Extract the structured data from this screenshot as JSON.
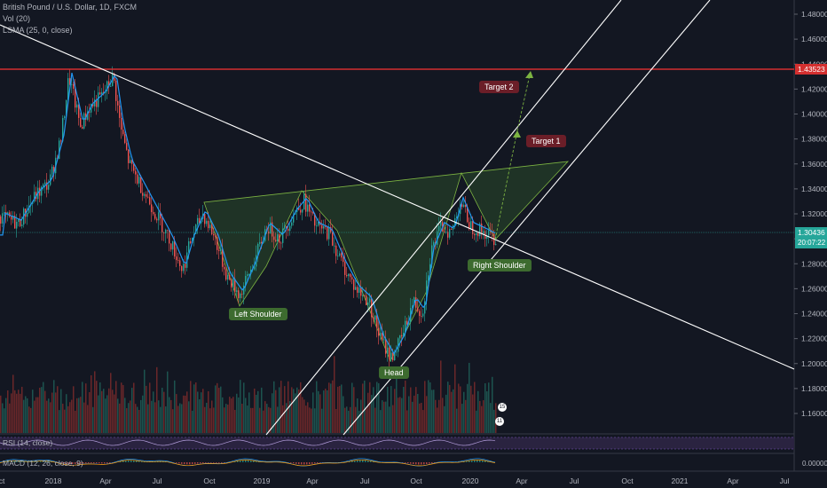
{
  "header": {
    "symbol": "British Pound / U.S. Dollar, 1D, FXCM",
    "vol_indicator": "Vol (20)",
    "lsma_indicator": "LSMA (25, 0, close)"
  },
  "price_axis": {
    "ticks": [
      "1.48000",
      "1.46000",
      "1.44000",
      "1.42000",
      "1.40000",
      "1.38000",
      "1.36000",
      "1.34000",
      "1.32000",
      "1.30000",
      "1.28000",
      "1.26000",
      "1.24000",
      "1.22000",
      "1.20000",
      "1.18000",
      "1.16000"
    ],
    "red_line_price": "1.43523",
    "current_price": "1.30436",
    "countdown": "20:07:22"
  },
  "time_axis": {
    "labels": [
      "ct",
      "2018",
      "Apr",
      "Jul",
      "Oct",
      "2019",
      "Apr",
      "Jul",
      "Oct",
      "2020",
      "Apr",
      "Jul",
      "Oct",
      "2021",
      "Apr",
      "Jul"
    ]
  },
  "annotations": {
    "left_shoulder": "Left Shoulder",
    "head": "Head",
    "right_shoulder": "Right Shoulder",
    "target1": "Target 1",
    "target2": "Target 2"
  },
  "badges": {
    "b1": "15",
    "b2": "11"
  },
  "sub_panes": {
    "rsi": "RSI (14, close)",
    "macd": "MACD (12, 26, close, 9)",
    "macd_value": "0.00000"
  },
  "colors": {
    "background": "#131722",
    "red_line": "#d32f2f",
    "teal_line": "#26a69a",
    "pattern_fill": "#2a4a2a",
    "pattern_stroke": "#7cb342",
    "up_candle": "#26a69a",
    "down_candle": "#ef5350",
    "lsma": "#2196f3"
  }
}
